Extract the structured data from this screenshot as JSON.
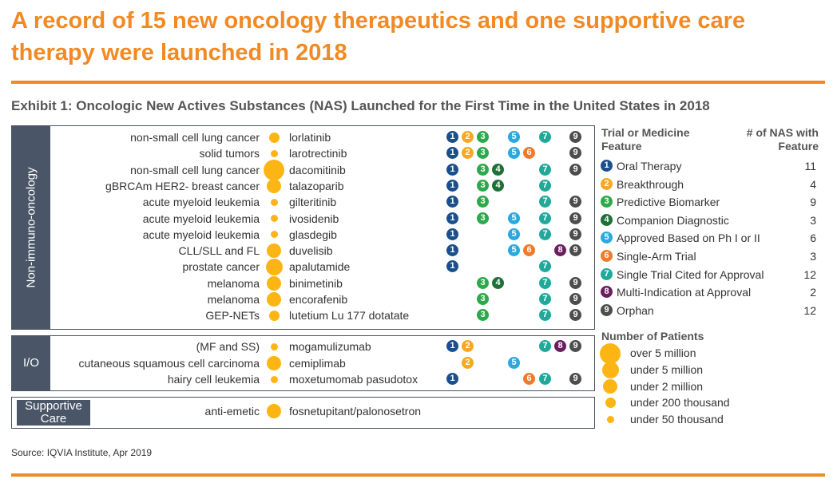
{
  "title": "A record of 15 new oncology therapeutics and one supportive care therapy were launched in 2018",
  "subtitle": "Exhibit 1: Oncologic New Actives Substances (NAS) Launched for the First Time in the United States in 2018",
  "source": "Source: IQVIA Institute, Apr 2019",
  "colors": {
    "accent": "#F08A24",
    "group_label_bg": "#4a5668",
    "patient_dot": "#FDB515",
    "feature_colors": [
      "#1B4F8A",
      "#F7A823",
      "#2DA84A",
      "#1E7038",
      "#2BA8DE",
      "#EE7A2B",
      "#1FA99B",
      "#6A1E5F",
      "#4D4D4D"
    ]
  },
  "legend": {
    "header_feature": "Trial or Medicine Feature",
    "header_count": "# of NAS with Feature",
    "features": [
      {
        "num": "1",
        "label": "Oral Therapy",
        "count": "11"
      },
      {
        "num": "2",
        "label": "Breakthrough",
        "count": "4"
      },
      {
        "num": "3",
        "label": "Predictive Biomarker",
        "count": "9"
      },
      {
        "num": "4",
        "label": "Companion Diagnostic",
        "count": "3"
      },
      {
        "num": "5",
        "label": "Approved Based on Ph I or II",
        "count": "6"
      },
      {
        "num": "6",
        "label": "Single-Arm Trial",
        "count": "3"
      },
      {
        "num": "7",
        "label": "Single Trial Cited for Approval",
        "count": "12"
      },
      {
        "num": "8",
        "label": "Multi-Indication at Approval",
        "count": "2"
      },
      {
        "num": "9",
        "label": "Orphan",
        "count": "12"
      }
    ],
    "patients_header": "Number of Patients",
    "patients": [
      {
        "label": "over 5 million",
        "level": 5
      },
      {
        "label": "under 5 million",
        "level": 4
      },
      {
        "label": "under 2 million",
        "level": 3
      },
      {
        "label": "under 200 thousand",
        "level": 2
      },
      {
        "label": "under 50 thousand",
        "level": 1
      }
    ]
  },
  "chart_data": {
    "type": "table",
    "groups": [
      {
        "label": "Non-immuno-oncology",
        "rows": [
          {
            "indication": "non-small cell lung cancer",
            "drug": "lorlatinib",
            "patients": 2,
            "features": [
              1,
              2,
              3,
              5,
              7,
              9
            ]
          },
          {
            "indication": "solid tumors",
            "drug": "larotrectinib",
            "patients": 1,
            "features": [
              1,
              2,
              3,
              5,
              6,
              9
            ]
          },
          {
            "indication": "non-small cell lung cancer",
            "drug": "dacomitinib",
            "patients": 5,
            "features": [
              1,
              3,
              4,
              7,
              9
            ]
          },
          {
            "indication": "gBRCAm HER2- breast cancer",
            "drug": "talazoparib",
            "patients": 3,
            "features": [
              1,
              3,
              4,
              7
            ]
          },
          {
            "indication": "acute myeloid leukemia",
            "drug": "gilteritinib",
            "patients": 1,
            "features": [
              1,
              3,
              7,
              9
            ]
          },
          {
            "indication": "acute myeloid leukemia",
            "drug": "ivosidenib",
            "patients": 1,
            "features": [
              1,
              3,
              5,
              7,
              9
            ]
          },
          {
            "indication": "acute myeloid leukemia",
            "drug": "glasdegib",
            "patients": 1,
            "features": [
              1,
              5,
              7,
              9
            ]
          },
          {
            "indication": "CLL/SLL and FL",
            "drug": "duvelisib",
            "patients": 3,
            "features": [
              1,
              5,
              6,
              8,
              9
            ]
          },
          {
            "indication": "prostate cancer",
            "drug": "apalutamide",
            "patients": 4,
            "features": [
              1,
              7
            ]
          },
          {
            "indication": "melanoma",
            "drug": "binimetinib",
            "patients": 3,
            "features": [
              3,
              4,
              7,
              9
            ]
          },
          {
            "indication": "melanoma",
            "drug": "encorafenib",
            "patients": 3,
            "features": [
              3,
              7,
              9
            ]
          },
          {
            "indication": "GEP-NETs",
            "drug": "lutetium Lu 177 dotatate",
            "patients": 2,
            "features": [
              3,
              7,
              9
            ]
          }
        ]
      },
      {
        "label": "I/O",
        "rows": [
          {
            "indication": "(MF and SS)",
            "drug": "mogamulizumab",
            "patients": 1,
            "features": [
              1,
              2,
              7,
              8,
              9
            ]
          },
          {
            "indication": "cutaneous squamous cell carcinoma",
            "drug": "cemiplimab",
            "patients": 3,
            "features": [
              2,
              5
            ]
          },
          {
            "indication": "hairy cell leukemia",
            "drug": "moxetumomab pasudotox",
            "patients": 1,
            "features": [
              1,
              6,
              7,
              9
            ]
          }
        ]
      },
      {
        "label": "Supportive Care",
        "rows": [
          {
            "indication": "anti-emetic",
            "drug": "fosnetupitant/palonosetron",
            "patients": 3,
            "features": []
          }
        ]
      }
    ]
  }
}
